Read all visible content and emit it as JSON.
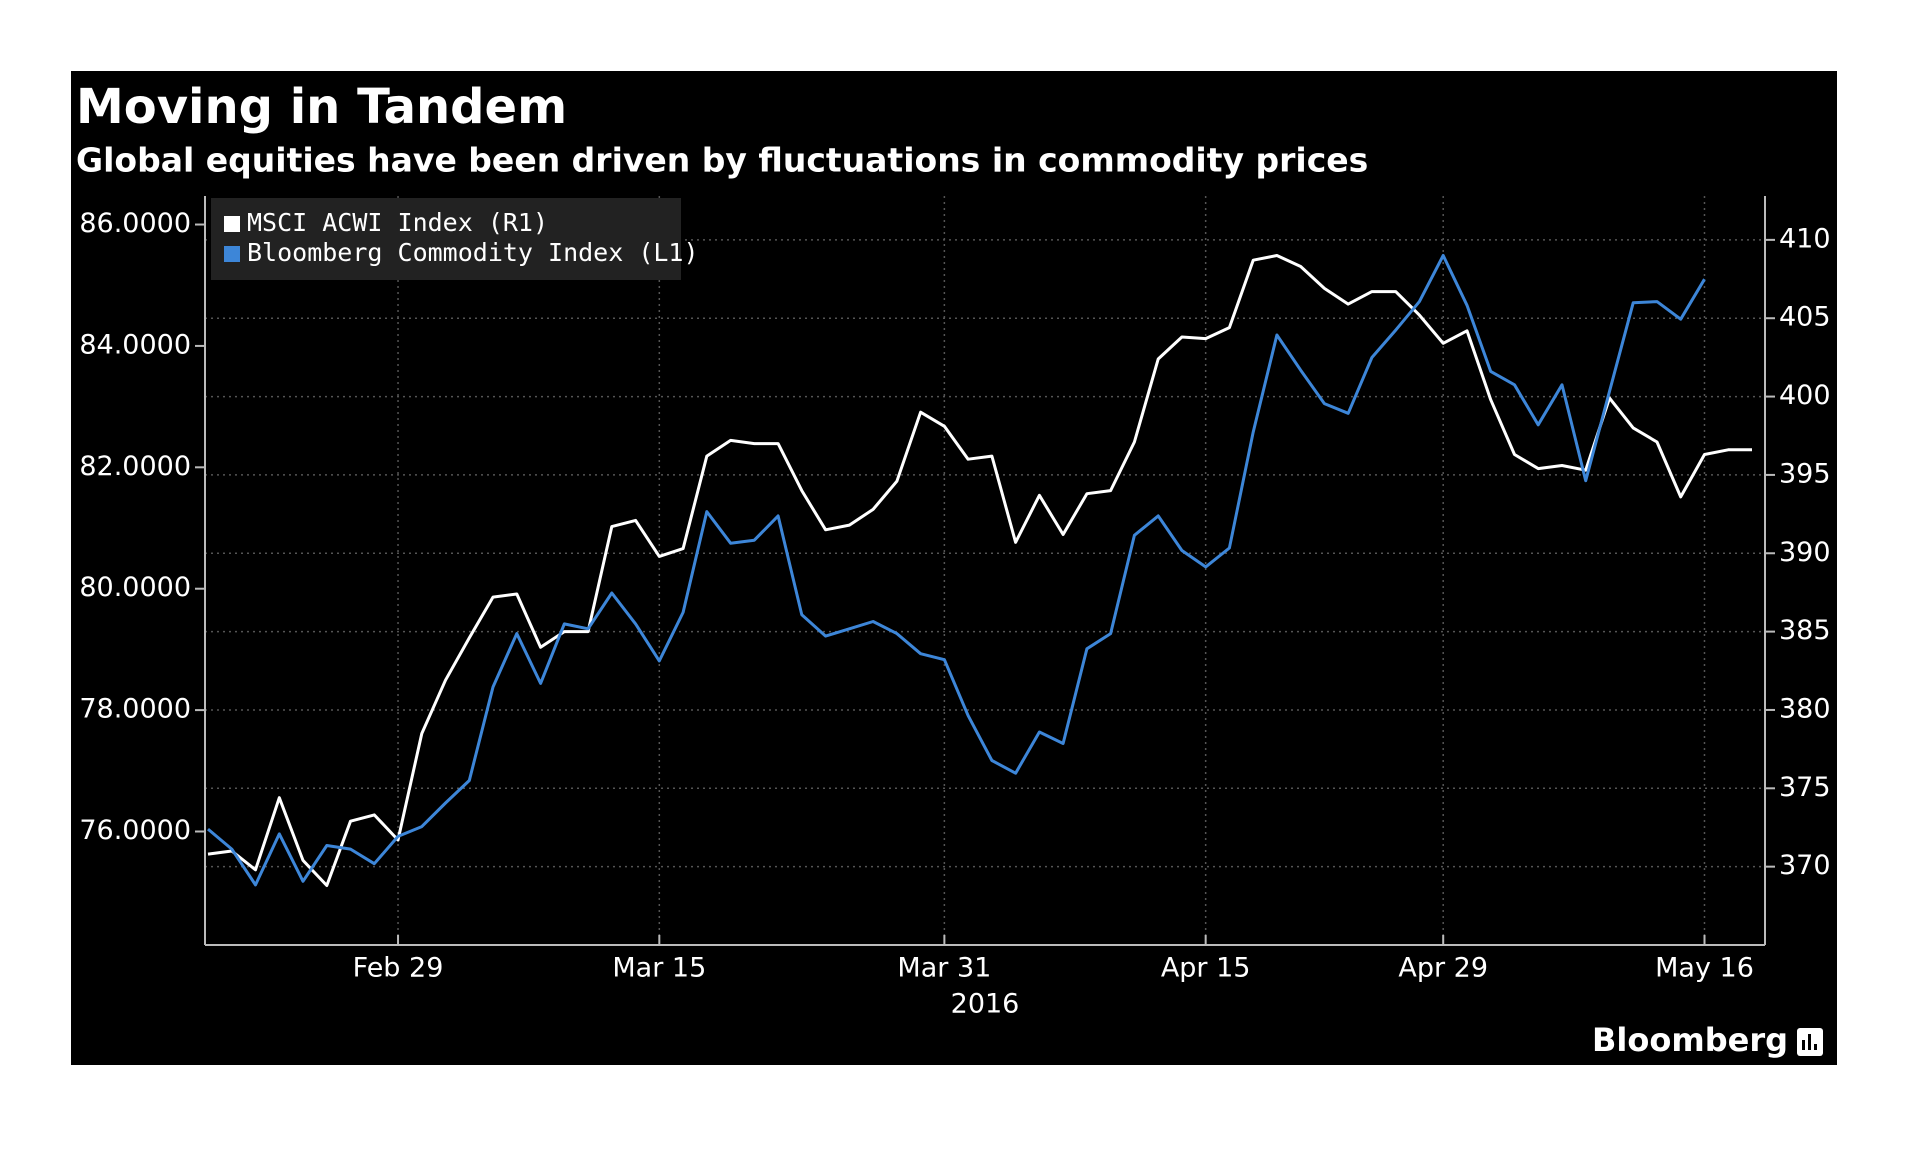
{
  "chart_data": {
    "type": "line",
    "title": "Moving in Tandem",
    "subtitle": "Global equities have been driven by fluctuations in commodity prices",
    "x_label": "2016",
    "source": "Bloomberg",
    "categories": [
      null,
      null,
      null,
      null,
      null,
      null,
      null,
      null,
      "Feb 29",
      null,
      null,
      null,
      null,
      null,
      null,
      null,
      null,
      null,
      null,
      "Mar 15",
      null,
      null,
      null,
      null,
      null,
      null,
      null,
      null,
      null,
      null,
      null,
      "Mar 31",
      null,
      null,
      null,
      null,
      null,
      null,
      null,
      null,
      null,
      null,
      "Apr 15",
      null,
      null,
      null,
      null,
      null,
      null,
      null,
      null,
      null,
      "Apr 29",
      null,
      null,
      null,
      null,
      null,
      null,
      null,
      null,
      null,
      null,
      "May 16",
      null,
      null
    ],
    "ylim": [
      74.13,
      86.47
    ],
    "yticks": [
      {
        "value": 76,
        "label": "76.0000"
      },
      {
        "value": 78,
        "label": "78.0000"
      },
      {
        "value": 80,
        "label": "80.0000"
      },
      {
        "value": 82,
        "label": "82.0000"
      },
      {
        "value": 84,
        "label": "84.0000"
      },
      {
        "value": 86,
        "label": "86.0000"
      }
    ],
    "y2lim": [
      365,
      412.8
    ],
    "y2ticks": [
      370,
      375,
      380,
      385,
      390,
      395,
      400,
      405,
      410
    ],
    "grid": true,
    "legend": "upper left",
    "series": [
      {
        "name": "MSCI ACWI Index (R1)",
        "color": "#ffffff",
        "axis": "y2",
        "values": [
          370.8,
          371.0,
          369.8,
          374.4,
          370.4,
          368.8,
          372.9,
          373.3,
          371.7,
          378.5,
          381.9,
          384.6,
          387.2,
          387.4,
          384.0,
          385.0,
          385.0,
          391.7,
          392.1,
          389.8,
          390.3,
          396.2,
          397.2,
          397.0,
          397.0,
          394.0,
          391.5,
          391.8,
          392.8,
          394.6,
          399.0,
          398.1,
          396.0,
          396.2,
          390.7,
          393.7,
          391.2,
          393.8,
          394.0,
          397.1,
          402.4,
          403.8,
          403.7,
          404.4,
          408.7,
          409.0,
          408.3,
          406.9,
          405.9,
          406.7,
          406.7,
          405.2,
          403.4,
          404.2,
          399.8,
          396.3,
          395.4,
          395.6,
          395.3,
          399.9,
          398.0,
          397.1,
          393.6,
          396.3,
          396.6,
          396.6
        ]
      },
      {
        "name": "Bloomberg Commodity Index (L1)",
        "color": "#3d86d8",
        "values": [
          76.04,
          75.71,
          75.12,
          75.96,
          75.18,
          75.77,
          75.71,
          75.47,
          75.92,
          76.08,
          76.47,
          76.84,
          78.38,
          79.26,
          78.44,
          79.42,
          79.34,
          79.93,
          79.42,
          78.81,
          79.61,
          81.27,
          80.75,
          80.8,
          81.2,
          79.57,
          79.22,
          79.34,
          79.46,
          79.26,
          78.93,
          78.83,
          77.91,
          77.17,
          76.96,
          77.64,
          77.45,
          79.01,
          79.26,
          80.88,
          81.2,
          80.63,
          80.36,
          80.67,
          82.58,
          84.18,
          83.6,
          83.05,
          82.89,
          83.81,
          84.26,
          84.73,
          85.49,
          84.67,
          83.58,
          83.36,
          82.7,
          83.36,
          81.78,
          83.25,
          84.71,
          84.73,
          84.44,
          85.1,
          null,
          null
        ]
      }
    ]
  }
}
